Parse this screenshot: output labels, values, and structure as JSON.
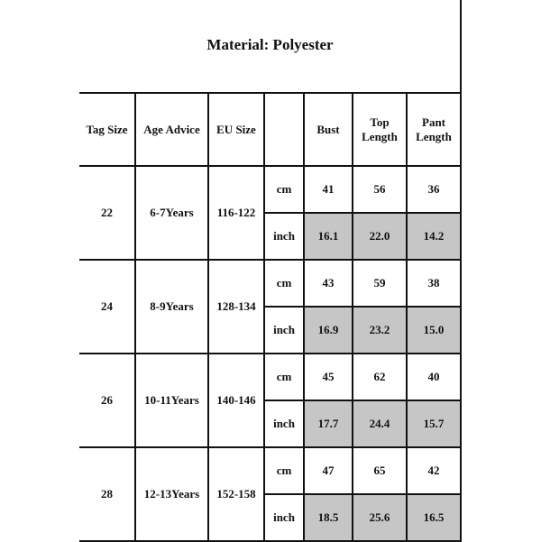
{
  "title": "Material: Polyester",
  "headers": [
    "Tag Size",
    "Age Advice",
    "EU Size",
    "",
    "Bust",
    "Top Length",
    "Pant Length"
  ],
  "unit_labels": {
    "cm": "cm",
    "inch": "inch"
  },
  "highlight_color": "#c6c6c6",
  "rows": [
    {
      "tag": "22",
      "age": "6-7Years",
      "eu": "116-122",
      "cm": [
        "41",
        "56",
        "36"
      ],
      "inch": [
        "16.1",
        "22.0",
        "14.2"
      ]
    },
    {
      "tag": "24",
      "age": "8-9Years",
      "eu": "128-134",
      "cm": [
        "43",
        "59",
        "38"
      ],
      "inch": [
        "16.9",
        "23.2",
        "15.0"
      ]
    },
    {
      "tag": "26",
      "age": "10-11Years",
      "eu": "140-146",
      "cm": [
        "45",
        "62",
        "40"
      ],
      "inch": [
        "17.7",
        "24.4",
        "15.7"
      ]
    },
    {
      "tag": "28",
      "age": "12-13Years",
      "eu": "152-158",
      "cm": [
        "47",
        "65",
        "42"
      ],
      "inch": [
        "18.5",
        "25.6",
        "16.5"
      ]
    }
  ]
}
